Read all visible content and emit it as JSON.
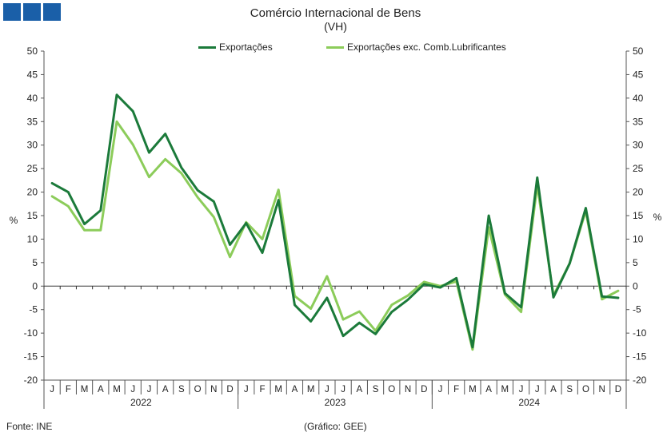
{
  "title": "Comércio Internacional de Bens",
  "subtitle": "(VH)",
  "source": "Fonte: INE",
  "credit": "(Gráfico: GEE)",
  "colors": {
    "exports": "#1b7a3a",
    "exports_excl": "#8ccc5a",
    "logo": "#1a5fa8"
  },
  "chart_data": {
    "type": "line",
    "ylabel": "%",
    "ylabel_right": "%",
    "ylim": [
      -20,
      50
    ],
    "yticks": [
      -20,
      -15,
      -10,
      -5,
      0,
      5,
      10,
      15,
      20,
      25,
      30,
      35,
      40,
      45,
      50
    ],
    "categories": [
      "J",
      "F",
      "M",
      "A",
      "M",
      "J",
      "J",
      "A",
      "S",
      "O",
      "N",
      "D",
      "J",
      "F",
      "M",
      "A",
      "M",
      "J",
      "J",
      "A",
      "S",
      "O",
      "N",
      "D",
      "J",
      "F",
      "M",
      "A",
      "M",
      "J",
      "J",
      "A",
      "S",
      "O",
      "N",
      "D"
    ],
    "years": [
      "2022",
      "2023",
      "2024"
    ],
    "legend_position": "top-center",
    "series": [
      {
        "name": "Exportações",
        "values": [
          21.9,
          20.0,
          13.2,
          16.1,
          40.7,
          37.2,
          28.4,
          32.4,
          25.2,
          20.4,
          18.0,
          8.8,
          13.4,
          7.1,
          18.3,
          -4.0,
          -7.5,
          -2.5,
          -10.6,
          -7.8,
          -10.2,
          -5.5,
          -2.9,
          0.4,
          -0.3,
          1.7,
          -13.0,
          15.0,
          -1.5,
          -4.5,
          23.1,
          -2.4,
          4.8,
          16.6,
          -2.2,
          -2.5
        ]
      },
      {
        "name": "Exportações exc. Comb.Lubrificantes",
        "values": [
          19.1,
          17.0,
          11.9,
          11.9,
          35.0,
          30.1,
          23.2,
          27.0,
          24.0,
          18.9,
          14.7,
          6.2,
          13.6,
          10.0,
          20.5,
          -2.1,
          -4.8,
          2.1,
          -7.1,
          -5.4,
          -9.5,
          -4.0,
          -2.0,
          0.9,
          0.0,
          1.0,
          -13.5,
          12.5,
          -1.8,
          -5.5,
          21.5,
          -2.0,
          4.8,
          16.0,
          -2.8,
          -1.0
        ]
      }
    ]
  }
}
